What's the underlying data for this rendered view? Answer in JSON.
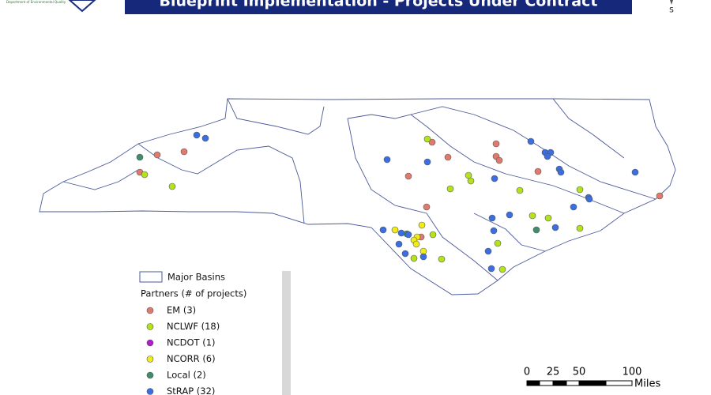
{
  "header": {
    "title": "Blueprint Implementation - Projects Under Contract",
    "logo_text": "Department of Environmental Quality",
    "compass": "S"
  },
  "legend": {
    "basins": "Major Basins",
    "partners_title": "Partners (# of projects)",
    "partners": [
      {
        "label": "EM (3)",
        "color": "#e07a6e"
      },
      {
        "label": "NCLWF (18)",
        "color": "#b4e31c"
      },
      {
        "label": "NCDOT (1)",
        "color": "#b21ccc"
      },
      {
        "label": "NCORR (6)",
        "color": "#f0ec1a"
      },
      {
        "label": "Local (2)",
        "color": "#3e8d6c"
      },
      {
        "label": "StRAP (32)",
        "color": "#3b6ee0"
      }
    ]
  },
  "scale_bar": {
    "labels": [
      "0",
      "25",
      "50",
      "100"
    ],
    "unit": "Miles"
  }
}
